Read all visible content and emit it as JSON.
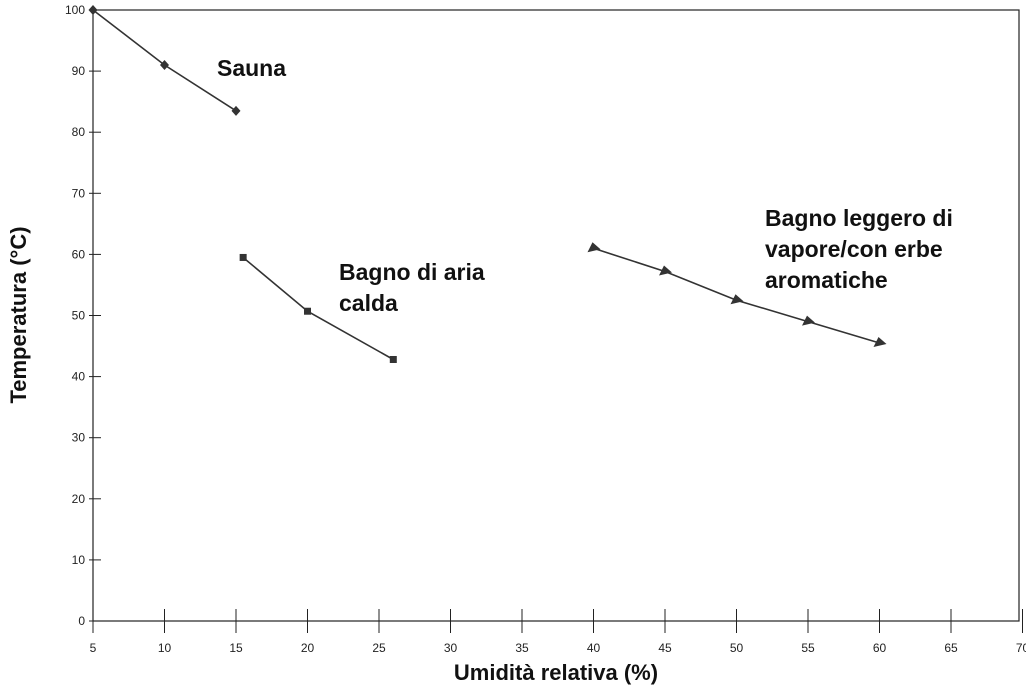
{
  "chart_data": {
    "type": "line",
    "xlabel": "Umidità relativa (%)",
    "ylabel": "Temperatura (°C)",
    "xlim": [
      5,
      70
    ],
    "ylim": [
      0,
      100
    ],
    "y_ticks": [
      "0",
      "10",
      "20",
      "30",
      "40",
      "50",
      "60",
      "70",
      "80",
      "90",
      "100"
    ],
    "x_ticks": [
      "5",
      "10",
      "15",
      "20",
      "25",
      "30",
      "35",
      "40",
      "45",
      "50",
      "55",
      "60",
      "65",
      "70"
    ],
    "grid": false,
    "series": [
      {
        "name": "Sauna",
        "marker": "diamond",
        "x": [
          5,
          10,
          15
        ],
        "y": [
          100,
          91,
          83.5
        ]
      },
      {
        "name": "Bagno di aria calda",
        "marker": "square",
        "x": [
          15.5,
          20,
          26
        ],
        "y": [
          59.5,
          50.7,
          42.8
        ]
      },
      {
        "name": "Bagno leggero di vapore/con erbe aromatiche",
        "marker": "triangle",
        "x": [
          40,
          45,
          50,
          55,
          60
        ],
        "y": [
          61,
          57.2,
          52.5,
          49,
          45.5
        ]
      }
    ],
    "colors": {
      "line": "#333333",
      "axis": "#222222"
    }
  }
}
